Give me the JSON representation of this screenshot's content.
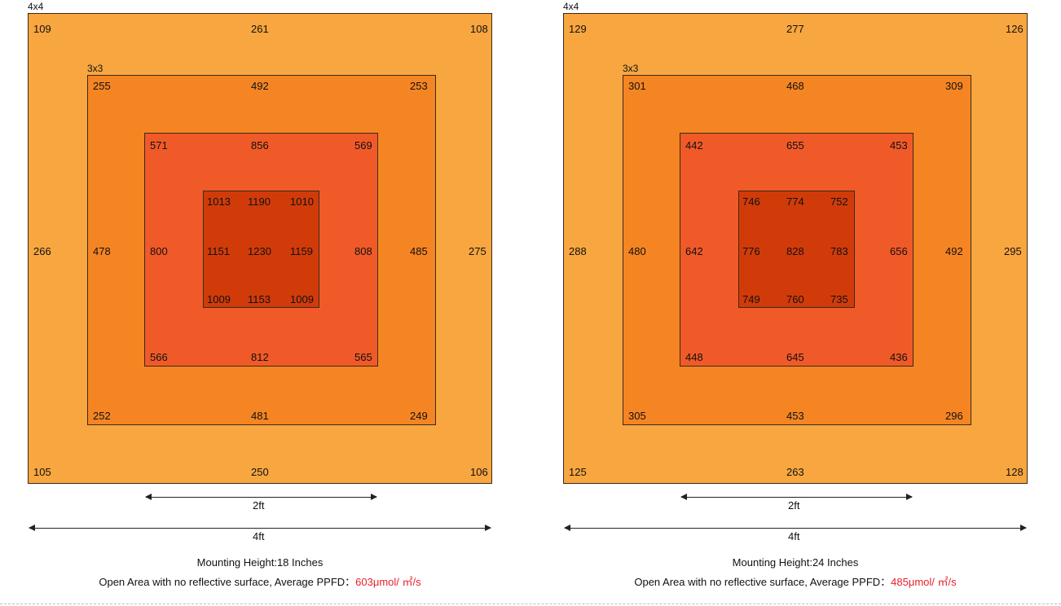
{
  "panels": [
    {
      "tag_outer": "4x4",
      "tag_inner": "3x3",
      "outer": {
        "tl": "109",
        "tc": "261",
        "tr": "108",
        "ml": "266",
        "mr": "275",
        "bl": "105",
        "bc": "250",
        "br": "106"
      },
      "ring3": {
        "tl": "255",
        "tc": "492",
        "tr": "253",
        "ml": "478",
        "mr": "485",
        "bl": "252",
        "bc": "481",
        "br": "249"
      },
      "ring2": {
        "tl": "571",
        "tc": "856",
        "tr": "569",
        "ml": "800",
        "mr": "808",
        "bl": "566",
        "bc": "812",
        "br": "565"
      },
      "core": {
        "tl": "1013",
        "tc": "1190",
        "tr": "1010",
        "ml": "1151",
        "mc": "1230",
        "mr": "1159",
        "bl": "1009",
        "bc": "1153",
        "br": "1009"
      },
      "dim_2ft": "2ft",
      "dim_4ft": "4ft",
      "caption_height": "Mounting Height:18 Inches",
      "caption_open": "Open Area with no reflective surface,   Average PPFD：",
      "caption_value": "603μmol/ ㎡/s"
    },
    {
      "tag_outer": "4x4",
      "tag_inner": "3x3",
      "outer": {
        "tl": "129",
        "tc": "277",
        "tr": "126",
        "ml": "288",
        "mr": "295",
        "bl": "125",
        "bc": "263",
        "br": "128"
      },
      "ring3": {
        "tl": "301",
        "tc": "468",
        "tr": "309",
        "ml": "480",
        "mr": "492",
        "bl": "305",
        "bc": "453",
        "br": "296"
      },
      "ring2": {
        "tl": "442",
        "tc": "655",
        "tr": "453",
        "ml": "642",
        "mr": "656",
        "bl": "448",
        "bc": "645",
        "br": "436"
      },
      "core": {
        "tl": "746",
        "tc": "774",
        "tr": "752",
        "ml": "776",
        "mc": "828",
        "mr": "783",
        "bl": "749",
        "bc": "760",
        "br": "735"
      },
      "dim_2ft": "2ft",
      "dim_4ft": "4ft",
      "caption_height": "Mounting Height:24 Inches",
      "caption_open": "Open Area with no reflective surface,   Average PPFD：",
      "caption_value": "485μmol/ ㎡/s"
    }
  ]
}
